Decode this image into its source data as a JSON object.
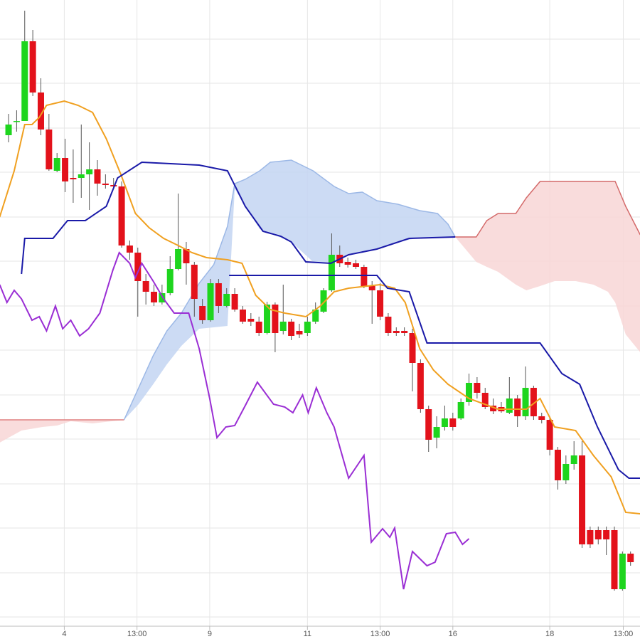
{
  "chart_data": {
    "type": "candlestick",
    "xlim": [
      -1.06,
      78.17
    ],
    "ylim": [
      0,
      88
    ],
    "xticks": [
      {
        "value": 6.9,
        "label": "4"
      },
      {
        "value": 15.9,
        "label": "13:00"
      },
      {
        "value": 24.9,
        "label": "9"
      },
      {
        "value": 37.0,
        "label": "11"
      },
      {
        "value": 46.0,
        "label": "13:00"
      },
      {
        "value": 55.0,
        "label": "16"
      },
      {
        "value": 67.0,
        "label": "18"
      },
      {
        "value": 76.1,
        "label": "13:00"
      }
    ],
    "ygrid": [
      1.3,
      7.5,
      13.8,
      20,
      26.3,
      32.5,
      38.8,
      45,
      51.3,
      57.5,
      63.8,
      70,
      76.3,
      82.5
    ],
    "grid": true,
    "up_color": "#1ed51e",
    "down_color": "#e3121b",
    "candles": {
      "x": [
        0,
        1,
        2,
        3,
        4,
        5,
        6,
        7,
        8,
        9,
        10,
        11,
        12,
        13,
        14,
        15,
        16,
        17,
        18,
        19,
        20,
        21,
        22,
        23,
        24,
        25,
        26,
        27,
        28,
        29,
        30,
        31,
        32,
        33,
        34,
        35,
        36,
        37,
        38,
        39,
        40,
        41,
        42,
        43,
        44,
        45,
        46,
        47,
        48,
        49,
        50,
        51,
        52,
        53,
        54,
        55,
        56,
        57,
        58,
        59,
        60,
        61,
        62,
        63,
        64,
        65,
        66,
        67,
        68,
        69,
        70,
        71,
        72,
        73,
        74,
        75,
        76,
        77
      ],
      "open": [
        69.0,
        71.0,
        71.0,
        82.2,
        75.0,
        69.8,
        64.0,
        65.8,
        63.0,
        63.0,
        63.5,
        64.2,
        62.2,
        62.0,
        61.8,
        53.5,
        52.5,
        48.5,
        47.0,
        45.5,
        46.8,
        50.2,
        53.0,
        50.8,
        45.0,
        43.0,
        48.2,
        45.0,
        46.7,
        44.5,
        43.2,
        42.8,
        41.2,
        45.2,
        41.5,
        42.8,
        41.5,
        41.2,
        42.8,
        44.2,
        47.2,
        52.2,
        51.2,
        51.0,
        50.5,
        47.8,
        47.2,
        43.5,
        41.5,
        41.5,
        41.2,
        37.0,
        30.5,
        26.5,
        28.0,
        29.2,
        29.2,
        31.5,
        34.2,
        32.8,
        31.0,
        30.8,
        30.0,
        32.0,
        29.5,
        33.5,
        29.5,
        29.0,
        24.8,
        20.5,
        22.8,
        24.0,
        13.5,
        13.5,
        13.5,
        13.5,
        5.2,
        10.2
      ],
      "high": [
        72.0,
        72.5,
        86.5,
        83.8,
        77.0,
        72.0,
        66.5,
        68.5,
        67.0,
        70.5,
        68.0,
        65.5,
        63.5,
        63.0,
        62.5,
        54.2,
        53.2,
        49.5,
        48.0,
        48.0,
        52.0,
        60.8,
        54.0,
        51.2,
        46.0,
        48.8,
        48.8,
        47.5,
        47.5,
        45.0,
        44.0,
        43.5,
        45.6,
        45.5,
        48.0,
        43.2,
        42.5,
        43.5,
        45.5,
        47.5,
        55.2,
        53.5,
        51.8,
        51.5,
        50.8,
        48.5,
        48.2,
        44.0,
        42.0,
        42.0,
        41.8,
        37.5,
        31.0,
        29.5,
        31.0,
        30.0,
        32.0,
        35.5,
        35.0,
        33.5,
        32.0,
        31.5,
        35.0,
        32.5,
        36.5,
        33.8,
        30.0,
        29.5,
        25.2,
        24.0,
        26.0,
        26.0,
        14.0,
        14.0,
        14.0,
        14.0,
        10.5,
        10.5
      ],
      "low": [
        68.0,
        69.5,
        71.0,
        74.5,
        69.0,
        64.0,
        63.8,
        61.0,
        59.5,
        60.2,
        58.5,
        60.5,
        61.5,
        61.4,
        53.2,
        51.5,
        43.5,
        45.2,
        45.0,
        45.2,
        46.5,
        50.0,
        48.0,
        43.5,
        42.5,
        42.8,
        44.0,
        44.8,
        44.2,
        42.5,
        42.2,
        40.8,
        41.0,
        38.5,
        41.0,
        40.2,
        40.5,
        40.8,
        42.5,
        44.0,
        47.0,
        50.5,
        50.4,
        50.2,
        47.5,
        42.5,
        43.0,
        40.8,
        40.8,
        40.8,
        33.0,
        30.0,
        24.5,
        25.0,
        27.5,
        27.5,
        29.0,
        31.0,
        32.0,
        30.5,
        29.8,
        30.0,
        29.8,
        28.0,
        29.0,
        29.0,
        28.5,
        24.0,
        19.2,
        20.0,
        22.0,
        11.0,
        11.0,
        11.5,
        10.0,
        5.0,
        5.0,
        8.5
      ],
      "close": [
        70.5,
        71.0,
        82.2,
        75.0,
        69.8,
        64.2,
        65.8,
        62.5,
        62.8,
        63.5,
        64.2,
        62.2,
        62.0,
        61.8,
        53.5,
        52.5,
        48.5,
        47.0,
        45.5,
        46.8,
        50.2,
        53.0,
        51.0,
        46.0,
        43.0,
        48.2,
        45.0,
        46.7,
        44.5,
        42.8,
        42.8,
        41.2,
        45.2,
        41.2,
        42.8,
        40.8,
        41.0,
        42.8,
        44.5,
        47.2,
        52.2,
        51.0,
        50.8,
        50.5,
        47.8,
        47.2,
        43.5,
        41.2,
        41.2,
        41.2,
        37.0,
        30.5,
        26.2,
        28.0,
        29.2,
        28.0,
        31.5,
        34.2,
        32.8,
        30.8,
        30.2,
        30.2,
        32.0,
        29.5,
        33.5,
        29.5,
        29.0,
        24.8,
        20.5,
        22.8,
        24.0,
        11.5,
        11.5,
        12.2,
        12.2,
        5.2,
        10.2,
        9.0
      ]
    },
    "clouds": [
      {
        "color": "#f8d6d6",
        "edge": "#e08080",
        "x": [
          -1.1,
          1.6,
          4.2,
          6.0,
          7.7,
          10.4,
          14.3
        ],
        "upper": [
          29,
          29,
          29,
          29,
          29,
          29,
          29
        ],
        "lower": [
          25.8,
          27.5,
          28,
          28.2,
          28.8,
          28.5,
          29
        ]
      },
      {
        "color": "#c3d5f2",
        "edge": "#9cb8e6",
        "x": [
          14.3,
          16.1,
          17.9,
          19.6,
          21.4,
          23.6,
          25.4,
          27.1,
          28.0,
          29.3,
          31.1,
          32.4,
          35.0,
          37.7,
          40.3,
          42.1,
          43.8,
          45.6,
          48.2,
          50.9,
          53.1,
          54.4,
          55.3
        ],
        "upper": [
          29,
          33.5,
          38,
          41.5,
          44,
          48.2,
          50.8,
          56.2,
          62.2,
          62.8,
          64,
          65.2,
          65.5,
          64,
          61.8,
          60.8,
          61,
          59.8,
          59.3,
          58.4,
          58,
          56.5,
          54.7
        ],
        "lower": [
          29,
          31.2,
          34,
          36.8,
          39.4,
          41.8,
          42,
          42.2,
          61.5,
          59,
          55.8,
          55.2,
          54,
          51.2,
          51.2,
          52.2,
          52.6,
          53,
          54,
          54.6,
          54.6,
          54.7,
          54.7
        ]
      },
      {
        "color": "#f8d6d6",
        "edge": "#d46a6a",
        "x": [
          55.3,
          57.9,
          59.2,
          60.6,
          62.8,
          64.1,
          65.8,
          67.6,
          70.2,
          72.4,
          74.2,
          75.1,
          76.4,
          78.2
        ],
        "upper": [
          54.7,
          54.7,
          57,
          58,
          58,
          60.2,
          62.5,
          62.5,
          62.5,
          62.5,
          62.5,
          62.5,
          59,
          55
        ],
        "lower": [
          54.7,
          51.2,
          50.5,
          49.8,
          48,
          47.2,
          47.8,
          48.5,
          48.5,
          48,
          47,
          45.5,
          41,
          38.5
        ]
      }
    ],
    "lines": [
      {
        "color": "#f0a020",
        "x": [
          -1.1,
          0.7,
          2.0,
          2.9,
          3.8,
          4.7,
          6.9,
          8.6,
          10.4,
          12.1,
          13.9,
          15.7,
          17.4,
          19.2,
          21.0,
          22.7,
          24.5,
          27.1,
          28.9,
          30.6,
          32.4,
          34.2,
          36.8,
          38.6,
          40.3,
          42.1,
          46.0,
          47.8,
          49.1,
          50.9,
          52.6,
          54.4,
          57.0,
          60.6,
          64.1,
          65.8,
          67.6,
          70.2,
          72.4,
          74.6,
          76.4,
          78.2
        ],
        "values": [
          57.5,
          64,
          70.5,
          70.5,
          71.5,
          73.2,
          73.8,
          73.2,
          72.2,
          68.5,
          63.5,
          58,
          56,
          54.5,
          53.5,
          52.5,
          51.8,
          51.5,
          51,
          46.5,
          44.5,
          44,
          43.5,
          45,
          47,
          47.5,
          48,
          47.5,
          45.5,
          39,
          36,
          34,
          32,
          30.5,
          30.5,
          32,
          28,
          27.5,
          24,
          21,
          16,
          15.8
        ]
      },
      {
        "color": "#1a1aa8",
        "x": [
          1.6,
          2.0,
          5.5,
          7.3,
          9.5,
          12.1,
          13.5,
          16.5,
          23.6,
          27.1,
          29.3,
          31.5,
          33.7,
          35.0,
          36.8,
          39.9,
          42.1,
          45.6,
          49.6,
          55.3
        ],
        "values": [
          49.5,
          54.5,
          54.5,
          57,
          57,
          59,
          63,
          65.2,
          64.8,
          64,
          59,
          55.5,
          54.8,
          54,
          51.2,
          51,
          52.2,
          53,
          54.5,
          54.7
        ]
      },
      {
        "color": "#1a1aa8",
        "x": [
          27.3,
          45.6,
          46.9,
          49.6,
          51.8,
          65.8,
          68.5,
          70.7,
          72.9,
          75.5,
          76.8,
          78.2
        ],
        "values": [
          49.3,
          49.3,
          47.5,
          47,
          39.8,
          39.8,
          35.5,
          34,
          28,
          22,
          20.8,
          20.8
        ]
      },
      {
        "color": "#9a2ed4",
        "x": [
          -1.1,
          -0.2,
          0.7,
          1.6,
          2.9,
          3.8,
          4.7,
          5.8,
          6.7,
          7.7,
          8.8,
          9.9,
          11.3,
          12.9,
          13.7,
          15.0,
          15.7,
          16.5,
          17.9,
          19.2,
          20.5,
          22.3,
          23.6,
          24.9,
          25.8,
          26.9,
          28.0,
          29.3,
          30.8,
          32.8,
          34.2,
          35.2,
          36.4,
          37.1,
          38.1,
          39.4,
          40.3,
          42.1,
          44.0,
          44.9,
          46.3,
          47.2,
          47.8,
          48.9,
          50.0,
          51.8,
          52.8,
          54.2,
          55.3,
          56.2,
          57.0
        ],
        "values": [
          48,
          45.5,
          47.2,
          46,
          43,
          43.5,
          41.5,
          45,
          41.8,
          43,
          40.8,
          41.8,
          44,
          50,
          52.5,
          51,
          49,
          51,
          48.5,
          46,
          44,
          44,
          39,
          32,
          26.5,
          28,
          28.2,
          31,
          34.3,
          31.2,
          30.8,
          30,
          32.5,
          30,
          33.5,
          30,
          28,
          20.8,
          24,
          11.8,
          13.7,
          12.5,
          13.8,
          5.2,
          10.5,
          8.5,
          9,
          13,
          13.2,
          11.5,
          12.3
        ]
      }
    ]
  }
}
